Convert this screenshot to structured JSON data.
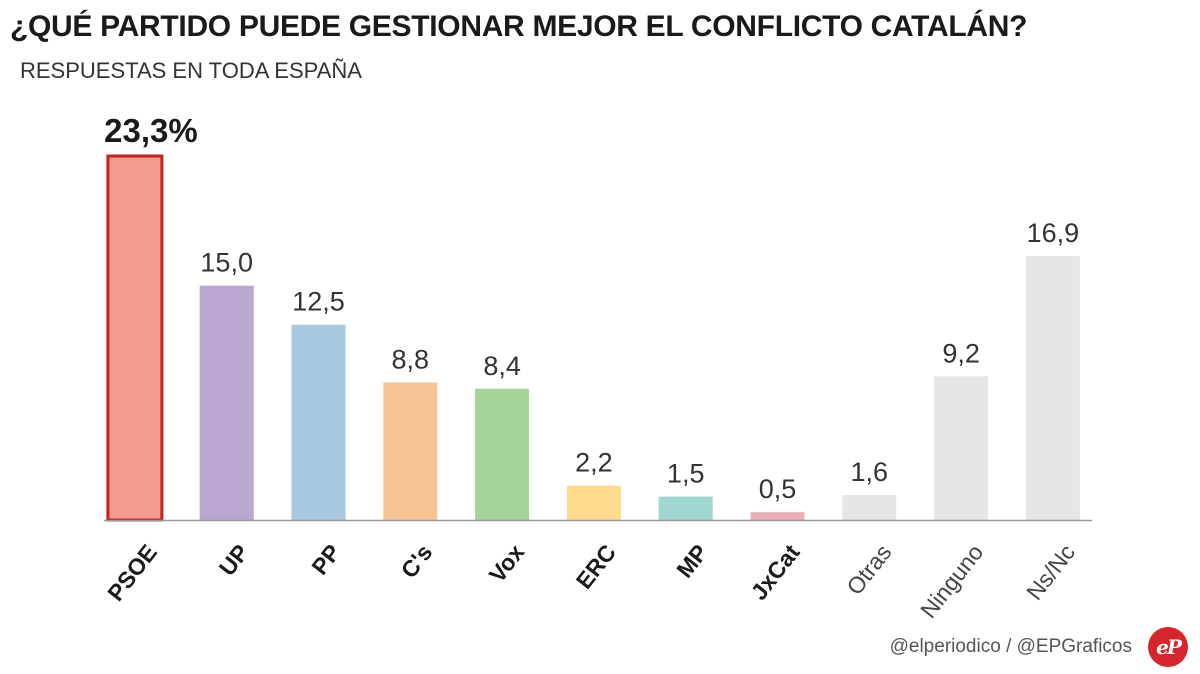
{
  "header": {
    "title": "¿QUÉ PARTIDO PUEDE GESTIONAR MEJOR EL CONFLICTO CATALÁN?",
    "subtitle": "RESPUESTAS EN TODA ESPAÑA"
  },
  "footer": {
    "credit": "@elperiodico / @EPGraficos",
    "logo_text": "eP"
  },
  "chart_data": {
    "type": "bar",
    "title": "¿QUÉ PARTIDO PUEDE GESTIONAR MEJOR EL CONFLICTO CATALÁN?",
    "subtitle": "RESPUESTAS EN TODA ESPAÑA",
    "categories": [
      "PSOE",
      "UP",
      "PP",
      "C's",
      "Vox",
      "ERC",
      "MP",
      "JxCat",
      "Otras",
      "Ninguno",
      "Ns/Nc"
    ],
    "values": [
      23.3,
      15.0,
      12.5,
      8.8,
      8.4,
      2.2,
      1.5,
      0.5,
      1.6,
      9.2,
      16.9
    ],
    "value_labels": [
      "23,3%",
      "15,0",
      "12,5",
      "8,8",
      "8,4",
      "2,2",
      "1,5",
      "0,5",
      "1,6",
      "9,2",
      "16,9"
    ],
    "colors": [
      "#f29a8b",
      "#b9a6d1",
      "#a8c9df",
      "#f6c394",
      "#a6d39a",
      "#fcd98d",
      "#9fd6cf",
      "#e8b0b8",
      "#e6e6e6",
      "#e6e6e6",
      "#e6e6e6"
    ],
    "highlight": {
      "index": 0,
      "border_color": "#c8201f"
    },
    "bold_categories": [
      true,
      true,
      true,
      true,
      true,
      true,
      true,
      true,
      false,
      false,
      false
    ],
    "ylim": [
      0,
      23.3
    ],
    "xlabel": "",
    "ylabel": "",
    "grid": false
  }
}
